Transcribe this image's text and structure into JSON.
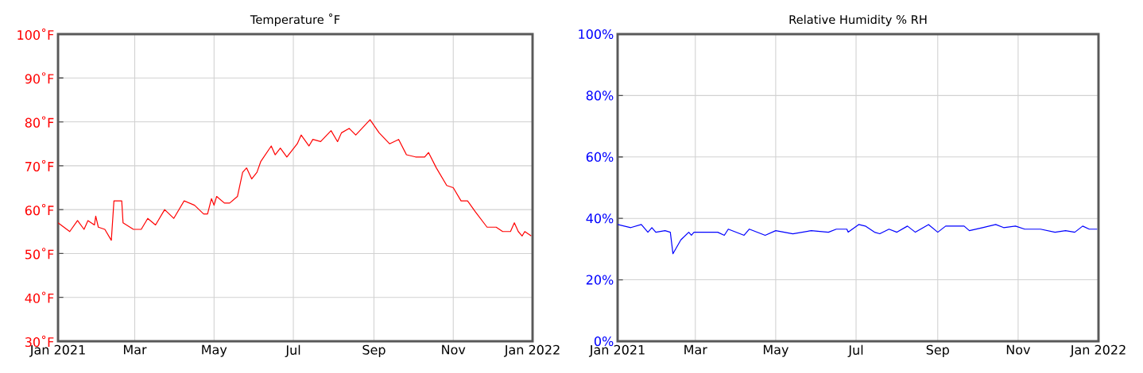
{
  "chart_data": [
    {
      "type": "line",
      "title": "Temperature ˚F",
      "color": "#ff0000",
      "grid": true,
      "x": [
        "2021-01-01",
        "2021-01-10",
        "2021-01-16",
        "2021-01-21",
        "2021-01-24",
        "2021-01-29",
        "2021-01-30",
        "2021-02-01",
        "2021-02-06",
        "2021-02-11",
        "2021-02-13",
        "2021-02-19",
        "2021-02-20",
        "2021-02-28",
        "2021-03-06",
        "2021-03-11",
        "2021-03-17",
        "2021-03-24",
        "2021-03-31",
        "2021-04-08",
        "2021-04-16",
        "2021-04-23",
        "2021-04-26",
        "2021-04-29",
        "2021-05-01",
        "2021-05-03",
        "2021-05-09",
        "2021-05-13",
        "2021-05-19",
        "2021-05-23",
        "2021-05-26",
        "2021-05-30",
        "2021-06-03",
        "2021-06-06",
        "2021-06-14",
        "2021-06-17",
        "2021-06-21",
        "2021-06-26",
        "2021-07-04",
        "2021-07-07",
        "2021-07-13",
        "2021-07-16",
        "2021-07-22",
        "2021-07-30",
        "2021-08-04",
        "2021-08-07",
        "2021-08-13",
        "2021-08-18",
        "2021-08-29",
        "2021-09-05",
        "2021-09-13",
        "2021-09-20",
        "2021-09-26",
        "2021-10-03",
        "2021-10-10",
        "2021-10-13",
        "2021-10-19",
        "2021-10-27",
        "2021-11-01",
        "2021-11-07",
        "2021-11-12",
        "2021-11-18",
        "2021-11-27",
        "2021-12-04",
        "2021-12-09",
        "2021-12-15",
        "2021-12-18",
        "2021-12-21",
        "2021-12-24",
        "2021-12-26",
        "2021-12-31"
      ],
      "values": [
        57,
        55,
        57.5,
        55.5,
        57.5,
        56.5,
        58.5,
        56,
        55.5,
        53,
        62,
        62,
        57,
        55.5,
        55.5,
        58,
        56.5,
        60,
        58,
        62,
        61,
        59,
        59,
        62.5,
        61,
        63,
        61.5,
        61.5,
        63,
        68.5,
        69.5,
        67,
        68.5,
        71,
        74.5,
        72.5,
        74,
        72,
        75,
        77,
        74.5,
        76,
        75.5,
        78,
        75.5,
        77.5,
        78.5,
        77,
        80.5,
        77.5,
        75,
        76,
        72.5,
        72,
        72,
        73,
        69.5,
        65.5,
        65,
        62,
        62,
        59.5,
        56,
        56,
        55,
        55,
        57,
        55,
        54,
        55,
        54
      ],
      "xlim": [
        "2021-01-01",
        "2022-01-01"
      ],
      "xticks": [
        {
          "value": "2021-01-01",
          "label": "Jan 2021"
        },
        {
          "value": "2021-03-01",
          "label": "Mar"
        },
        {
          "value": "2021-05-01",
          "label": "May"
        },
        {
          "value": "2021-07-01",
          "label": "Jul"
        },
        {
          "value": "2021-09-01",
          "label": "Sep"
        },
        {
          "value": "2021-11-01",
          "label": "Nov"
        },
        {
          "value": "2022-01-01",
          "label": "Jan 2022"
        }
      ],
      "ylim": [
        30,
        100
      ],
      "yticks": [
        {
          "value": 30,
          "label": "30˚F"
        },
        {
          "value": 40,
          "label": "40˚F"
        },
        {
          "value": 50,
          "label": "50˚F"
        },
        {
          "value": 60,
          "label": "60˚F"
        },
        {
          "value": 70,
          "label": "70˚F"
        },
        {
          "value": 80,
          "label": "80˚F"
        },
        {
          "value": 90,
          "label": "90˚F"
        },
        {
          "value": 100,
          "label": "100˚F"
        }
      ]
    },
    {
      "type": "line",
      "title": "Relative Humidity % RH",
      "color": "#0000ff",
      "grid": true,
      "x": [
        "2021-01-01",
        "2021-01-11",
        "2021-01-19",
        "2021-01-24",
        "2021-01-27",
        "2021-01-30",
        "2021-02-06",
        "2021-02-10",
        "2021-02-12",
        "2021-02-18",
        "2021-02-24",
        "2021-02-26",
        "2021-02-28",
        "2021-03-10",
        "2021-03-18",
        "2021-03-23",
        "2021-03-26",
        "2021-04-07",
        "2021-04-11",
        "2021-04-23",
        "2021-05-01",
        "2021-05-14",
        "2021-05-28",
        "2021-06-10",
        "2021-06-16",
        "2021-06-24",
        "2021-06-25",
        "2021-07-03",
        "2021-07-08",
        "2021-07-15",
        "2021-07-19",
        "2021-07-26",
        "2021-08-01",
        "2021-08-09",
        "2021-08-15",
        "2021-08-25",
        "2021-09-01",
        "2021-09-07",
        "2021-09-21",
        "2021-09-25",
        "2021-10-05",
        "2021-10-15",
        "2021-10-21",
        "2021-10-30",
        "2021-11-06",
        "2021-11-18",
        "2021-11-29",
        "2021-12-07",
        "2021-12-14",
        "2021-12-20",
        "2021-12-25",
        "2021-12-31"
      ],
      "values": [
        38,
        37,
        38,
        35.5,
        37,
        35.5,
        36,
        35.5,
        28.5,
        33,
        35.5,
        34.5,
        35.5,
        35.5,
        35.5,
        34.5,
        36.5,
        34.5,
        36.5,
        34.5,
        36,
        35,
        36,
        35.5,
        36.5,
        36.5,
        35.5,
        38,
        37.5,
        35.5,
        35,
        36.5,
        35.5,
        37.5,
        35.5,
        38,
        35.5,
        37.5,
        37.5,
        36,
        37,
        38,
        37,
        37.5,
        36.5,
        36.5,
        35.5,
        36,
        35.5,
        37.5,
        36.5,
        36.5
      ],
      "xlim": [
        "2021-01-01",
        "2022-01-01"
      ],
      "xticks": [
        {
          "value": "2021-01-01",
          "label": "Jan 2021"
        },
        {
          "value": "2021-03-01",
          "label": "Mar"
        },
        {
          "value": "2021-05-01",
          "label": "May"
        },
        {
          "value": "2021-07-01",
          "label": "Jul"
        },
        {
          "value": "2021-09-01",
          "label": "Sep"
        },
        {
          "value": "2021-11-01",
          "label": "Nov"
        },
        {
          "value": "2022-01-01",
          "label": "Jan 2022"
        }
      ],
      "ylim": [
        0,
        100
      ],
      "yticks": [
        {
          "value": 0,
          "label": "0%"
        },
        {
          "value": 20,
          "label": "20%"
        },
        {
          "value": 40,
          "label": "40%"
        },
        {
          "value": 60,
          "label": "60%"
        },
        {
          "value": 80,
          "label": "80%"
        },
        {
          "value": 100,
          "label": "100%"
        }
      ]
    }
  ]
}
